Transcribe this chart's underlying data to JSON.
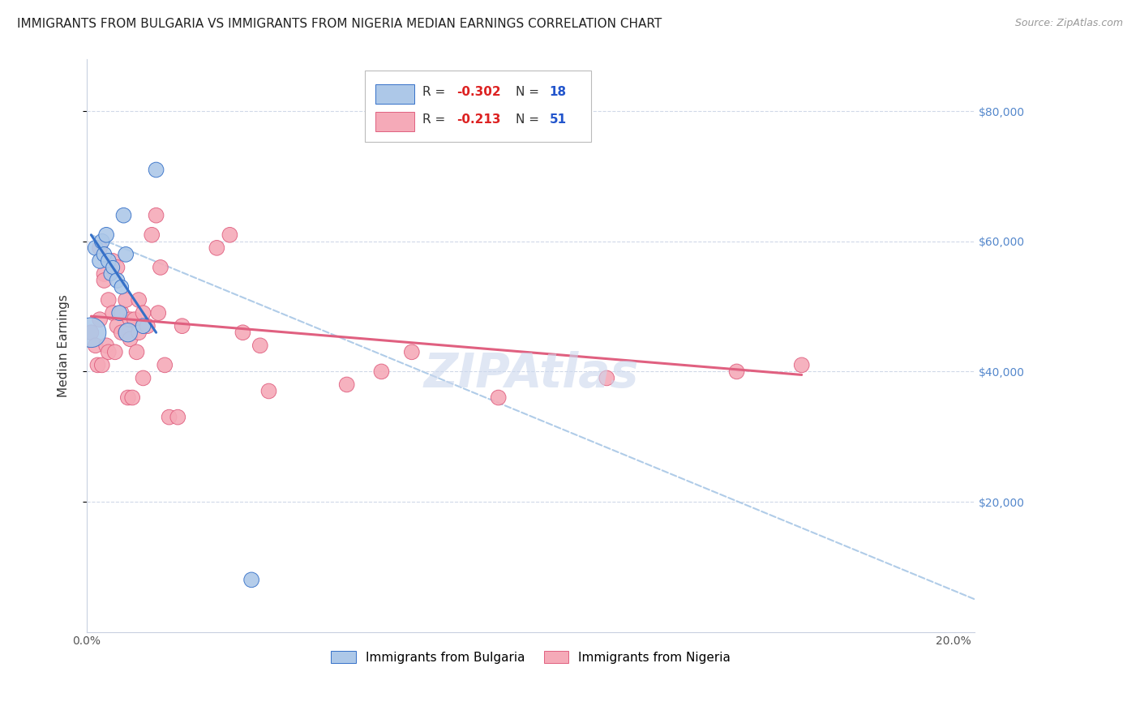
{
  "title": "IMMIGRANTS FROM BULGARIA VS IMMIGRANTS FROM NIGERIA MEDIAN EARNINGS CORRELATION CHART",
  "source": "Source: ZipAtlas.com",
  "ylabel": "Median Earnings",
  "ytick_labels": [
    "$80,000",
    "$60,000",
    "$40,000",
    "$20,000"
  ],
  "ytick_values": [
    80000,
    60000,
    40000,
    20000
  ],
  "ylim": [
    0,
    88000
  ],
  "xlim": [
    0.0,
    0.205
  ],
  "watermark": "ZIPAtlas",
  "bulgaria_R": "-0.302",
  "bulgaria_N": "18",
  "nigeria_R": "-0.213",
  "nigeria_N": "51",
  "bulgaria_color": "#adc8e8",
  "nigeria_color": "#f5aab8",
  "bulgaria_line_color": "#3570c8",
  "nigeria_line_color": "#e06080",
  "dashed_line_color": "#b0cce8",
  "bulgaria_x": [
    0.001,
    0.002,
    0.003,
    0.0035,
    0.004,
    0.0045,
    0.005,
    0.0055,
    0.006,
    0.007,
    0.0075,
    0.008,
    0.0085,
    0.009,
    0.0095,
    0.013,
    0.016,
    0.038
  ],
  "bulgaria_y": [
    46000,
    59000,
    57000,
    60000,
    58000,
    61000,
    57000,
    55000,
    56000,
    54000,
    49000,
    53000,
    64000,
    58000,
    46000,
    47000,
    71000,
    8000
  ],
  "bulgaria_size": [
    700,
    180,
    180,
    180,
    180,
    180,
    180,
    150,
    150,
    180,
    180,
    160,
    180,
    180,
    280,
    180,
    180,
    180
  ],
  "nigeria_x": [
    0.001,
    0.002,
    0.0025,
    0.003,
    0.003,
    0.0035,
    0.004,
    0.004,
    0.0045,
    0.005,
    0.005,
    0.006,
    0.006,
    0.0065,
    0.007,
    0.007,
    0.008,
    0.008,
    0.009,
    0.009,
    0.0095,
    0.01,
    0.01,
    0.0105,
    0.011,
    0.0115,
    0.012,
    0.012,
    0.013,
    0.013,
    0.014,
    0.015,
    0.016,
    0.0165,
    0.017,
    0.018,
    0.019,
    0.021,
    0.022,
    0.03,
    0.033,
    0.036,
    0.04,
    0.042,
    0.06,
    0.068,
    0.075,
    0.095,
    0.12,
    0.15,
    0.165
  ],
  "nigeria_y": [
    46000,
    44000,
    41000,
    59000,
    48000,
    41000,
    55000,
    54000,
    44000,
    51000,
    43000,
    57000,
    49000,
    43000,
    56000,
    47000,
    49000,
    46000,
    51000,
    46000,
    36000,
    48000,
    45000,
    36000,
    48000,
    43000,
    51000,
    46000,
    49000,
    39000,
    47000,
    61000,
    64000,
    49000,
    56000,
    41000,
    33000,
    33000,
    47000,
    59000,
    61000,
    46000,
    44000,
    37000,
    38000,
    40000,
    43000,
    36000,
    39000,
    40000,
    41000
  ],
  "nigeria_size": [
    180,
    180,
    180,
    180,
    180,
    180,
    180,
    180,
    180,
    180,
    180,
    180,
    180,
    180,
    180,
    180,
    180,
    180,
    180,
    180,
    180,
    180,
    180,
    180,
    180,
    180,
    180,
    180,
    180,
    180,
    180,
    180,
    180,
    180,
    180,
    180,
    180,
    180,
    180,
    180,
    180,
    180,
    180,
    180,
    180,
    180,
    180,
    180,
    180,
    180,
    180
  ],
  "bulgaria_trendline_x": [
    0.001,
    0.016
  ],
  "bulgaria_trendline_y": [
    61000,
    46000
  ],
  "nigeria_trendline_x": [
    0.001,
    0.165
  ],
  "nigeria_trendline_y": [
    48500,
    39500
  ],
  "dashed_trendline_x": [
    0.001,
    0.205
  ],
  "dashed_trendline_y": [
    61000,
    5000
  ],
  "title_fontsize": 11,
  "source_fontsize": 9,
  "axis_label_fontsize": 11,
  "tick_fontsize": 10,
  "legend_fontsize": 11,
  "watermark_fontsize": 42,
  "watermark_color": "#ccd8ee",
  "background_color": "#ffffff",
  "grid_color": "#d0d8e8",
  "axis_color": "#c8d0e0",
  "xtick_positions": [
    0.0,
    0.2
  ],
  "xtick_labels": [
    "0.0%",
    "20.0%"
  ]
}
